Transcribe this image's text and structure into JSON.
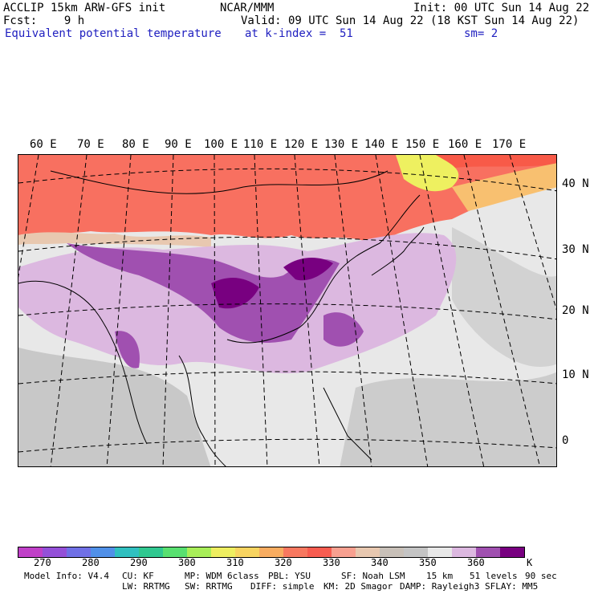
{
  "header": {
    "line1_left": "ACCLIP 15km ARW-GFS init",
    "line1_center": "NCAR/MMM",
    "line1_right": "Init: 00 UTC Sun 14 Aug 22",
    "line2_left": "Fcst:    9 h",
    "line2_right": "Valid: 09 UTC Sun 14 Aug 22 (18 KST Sun 14 Aug 22)",
    "line3_field": "Equivalent potential temperature",
    "line3_level": "at k-index =  51",
    "line3_smooth": "sm= 2"
  },
  "map": {
    "lon_labels": [
      "60 E",
      "70 E",
      "80 E",
      "90 E",
      "100 E",
      "110 E",
      "120 E",
      "130 E",
      "140 E",
      "150 E",
      "160 E",
      "170 E"
    ],
    "lat_labels": [
      "40 N",
      "30 N",
      "20 N",
      "10 N",
      "0"
    ]
  },
  "colorbar": {
    "colors": [
      "#c040c8",
      "#9450d8",
      "#7070e6",
      "#5090e8",
      "#30c0c0",
      "#30c890",
      "#58e070",
      "#a8ee58",
      "#eeee60",
      "#f8d460",
      "#f8ac60",
      "#f87860",
      "#f85c50",
      "#f8a090",
      "#e8c8b0",
      "#c8c0b8",
      "#c4c4c4",
      "#e8e8e8",
      "#dcb8e0",
      "#a050b0",
      "#780080"
    ],
    "labels": [
      "270",
      "280",
      "290",
      "300",
      "310",
      "320",
      "330",
      "340",
      "350",
      "360"
    ],
    "unit": "K"
  },
  "footer": {
    "row1": [
      "Model Info: V4.4",
      "CU: KF",
      "MP: WDM 6class",
      "PBL: YSU",
      "SF: Noah LSM",
      "15 km",
      "51 levels",
      "90 sec"
    ],
    "row2": [
      "LW: RRTMG",
      "SW: RRTMG",
      "DIFF: simple",
      "KM: 2D Smagor",
      "DAMP: Rayleigh3",
      "SFLAY: MM5"
    ]
  }
}
